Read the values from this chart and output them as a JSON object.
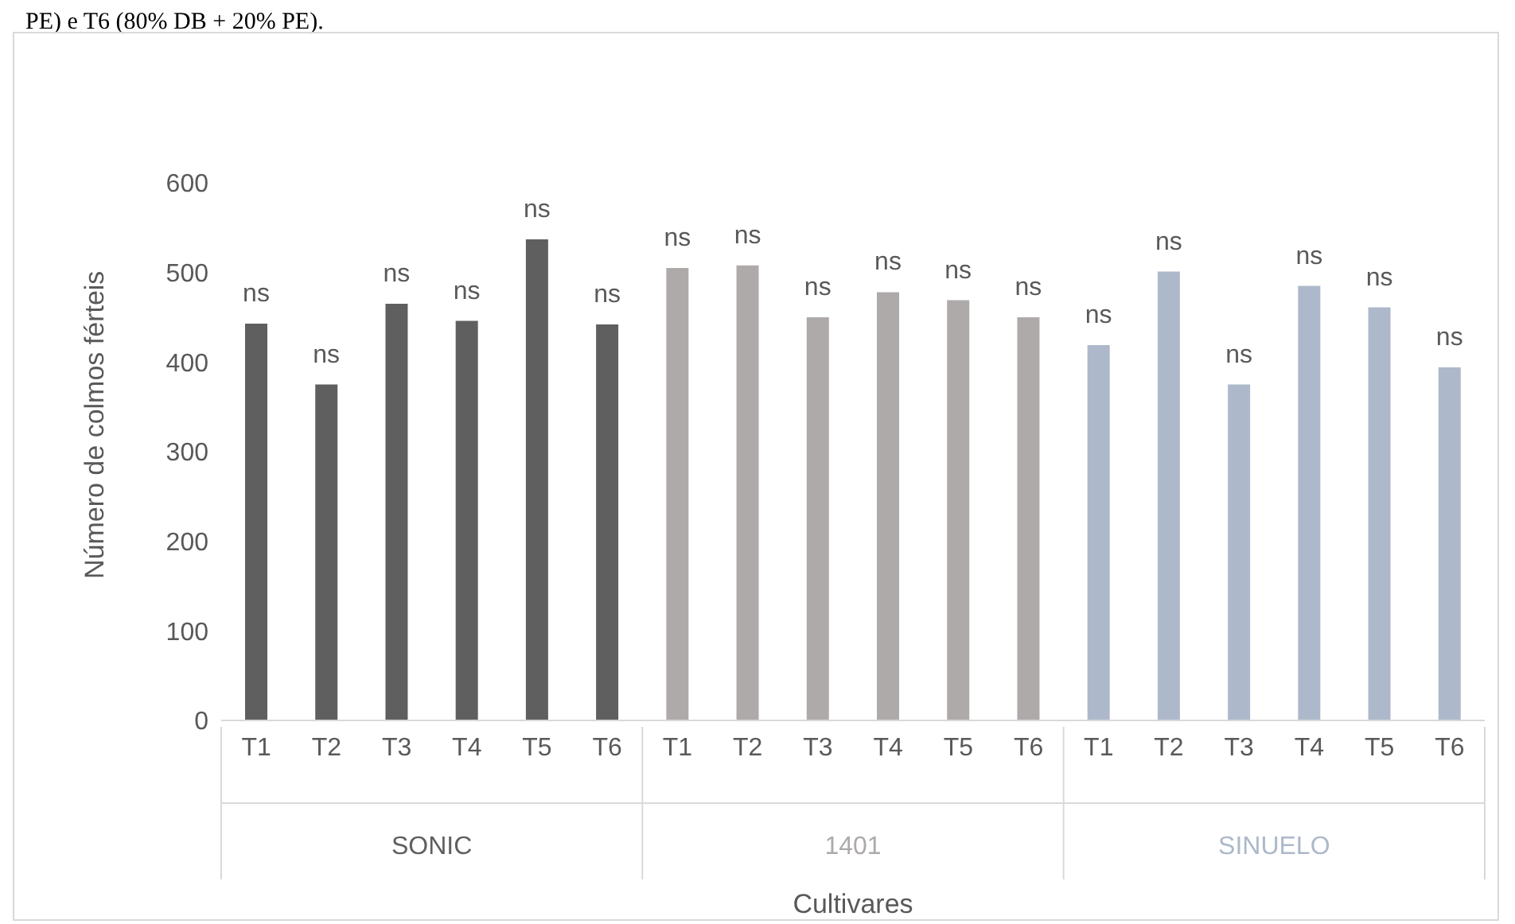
{
  "chart_data": {
    "type": "bar",
    "stacked": true,
    "xlabel": "Cultivares",
    "ylabel": "Número de colmos férteis",
    "annotations": [
      "PE) e T6 (80% DB + 20% PE)."
    ],
    "categories": [
      "T1",
      "T2",
      "T3",
      "T4",
      "T5",
      "T6",
      "T1",
      "T2",
      "T3",
      "T4",
      "T5",
      "T6",
      "T1",
      "T2",
      "T3",
      "T4",
      "T5",
      "T6"
    ],
    "series": [
      {
        "name": "SONIC",
        "color": "#5f5f5f",
        "values": [
          443,
          375,
          465,
          446,
          537,
          442,
          null,
          null,
          null,
          null,
          null,
          null,
          null,
          null,
          null,
          null,
          null,
          null
        ],
        "value_labels": [
          "ns",
          "ns",
          "ns",
          "ns",
          "ns",
          "ns",
          null,
          null,
          null,
          null,
          null,
          null,
          null,
          null,
          null,
          null,
          null,
          null
        ]
      },
      {
        "name": "1401",
        "color": "#aeaaaa",
        "values": [
          null,
          null,
          null,
          null,
          null,
          null,
          505,
          508,
          450,
          478,
          469,
          450,
          null,
          null,
          null,
          null,
          null,
          null
        ],
        "value_labels": [
          null,
          null,
          null,
          null,
          null,
          null,
          "ns",
          "ns",
          "ns",
          "ns",
          "ns",
          "ns",
          null,
          null,
          null,
          null,
          null,
          null
        ]
      },
      {
        "name": "SINUELO",
        "color": "#adb9ca",
        "values": [
          null,
          null,
          null,
          null,
          null,
          null,
          null,
          null,
          null,
          null,
          null,
          null,
          419,
          501,
          375,
          485,
          461,
          394
        ],
        "value_labels": [
          null,
          null,
          null,
          null,
          null,
          null,
          null,
          null,
          null,
          null,
          null,
          null,
          "ns",
          "ns",
          "ns",
          "ns",
          "ns",
          "ns"
        ]
      }
    ],
    "ylim": [
      0,
      600
    ],
    "yticks": [
      0,
      100,
      200,
      300,
      400,
      500,
      600
    ],
    "legend": false,
    "grid": false
  }
}
